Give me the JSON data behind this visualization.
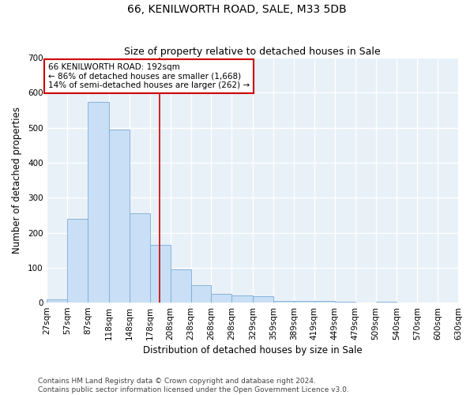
{
  "title": "66, KENILWORTH ROAD, SALE, M33 5DB",
  "subtitle": "Size of property relative to detached houses in Sale",
  "xlabel": "Distribution of detached houses by size in Sale",
  "ylabel": "Number of detached properties",
  "footnote": "Contains HM Land Registry data © Crown copyright and database right 2024.\nContains public sector information licensed under the Open Government Licence v3.0.",
  "property_label": "66 KENILWORTH ROAD: 192sqm",
  "annotation_line1": "← 86% of detached houses are smaller (1,668)",
  "annotation_line2": "14% of semi-detached houses are larger (262) →",
  "bar_edges": [
    27,
    57,
    87,
    118,
    148,
    178,
    208,
    238,
    268,
    298,
    329,
    359,
    389,
    419,
    449,
    479,
    509,
    540,
    570,
    600,
    630
  ],
  "bar_heights": [
    10,
    240,
    575,
    495,
    255,
    165,
    95,
    50,
    25,
    20,
    18,
    5,
    5,
    5,
    3,
    0,
    2,
    0,
    0,
    0
  ],
  "bar_color": "#c9dff5",
  "bar_edge_color": "#7aabd4",
  "vline_color": "#cc0000",
  "vline_x": 192,
  "annotation_box_color": "#cc0000",
  "ylim": [
    0,
    700
  ],
  "yticks": [
    0,
    100,
    200,
    300,
    400,
    500,
    600,
    700
  ],
  "background_color": "#e8f0f8",
  "grid_color": "#ffffff",
  "title_fontsize": 10,
  "subtitle_fontsize": 9,
  "axis_label_fontsize": 8.5,
  "tick_fontsize": 7.5,
  "annotation_fontsize": 7.5,
  "footnote_fontsize": 6.5
}
